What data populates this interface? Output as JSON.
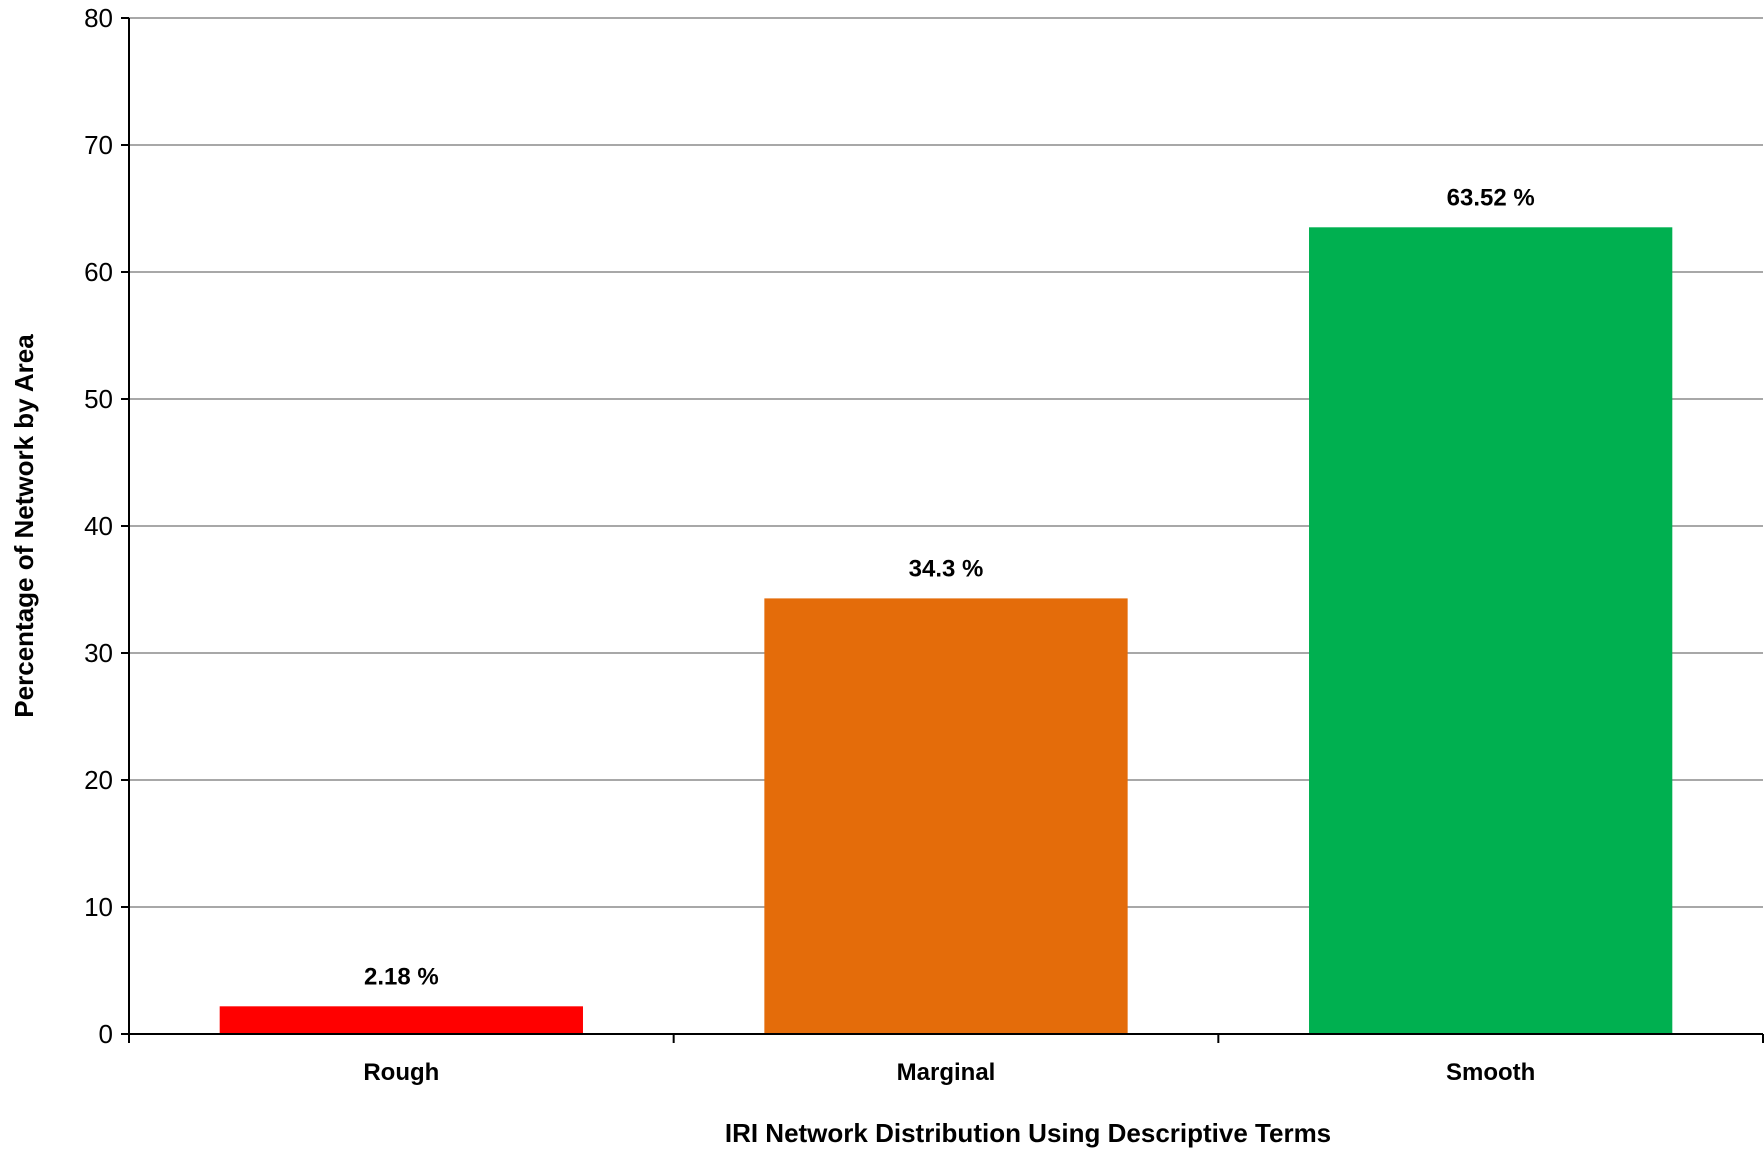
{
  "chart_data": {
    "type": "bar",
    "categories": [
      "Rough",
      "Marginal",
      "Smooth"
    ],
    "values": [
      2.18,
      34.3,
      63.52
    ],
    "data_labels": [
      "2.18 %",
      "34.3 %",
      "63.52 %"
    ],
    "bar_colors": [
      "#ff0000",
      "#e46c0a",
      "#00b050"
    ],
    "xlabel": "IRI Network Distribution Using Descriptive Terms",
    "ylabel": "Percentage of Network by Area",
    "ylim": [
      0,
      80
    ],
    "yticks": [
      0,
      10,
      20,
      30,
      40,
      50,
      60,
      70,
      80
    ],
    "grid": true,
    "legend": "none"
  }
}
